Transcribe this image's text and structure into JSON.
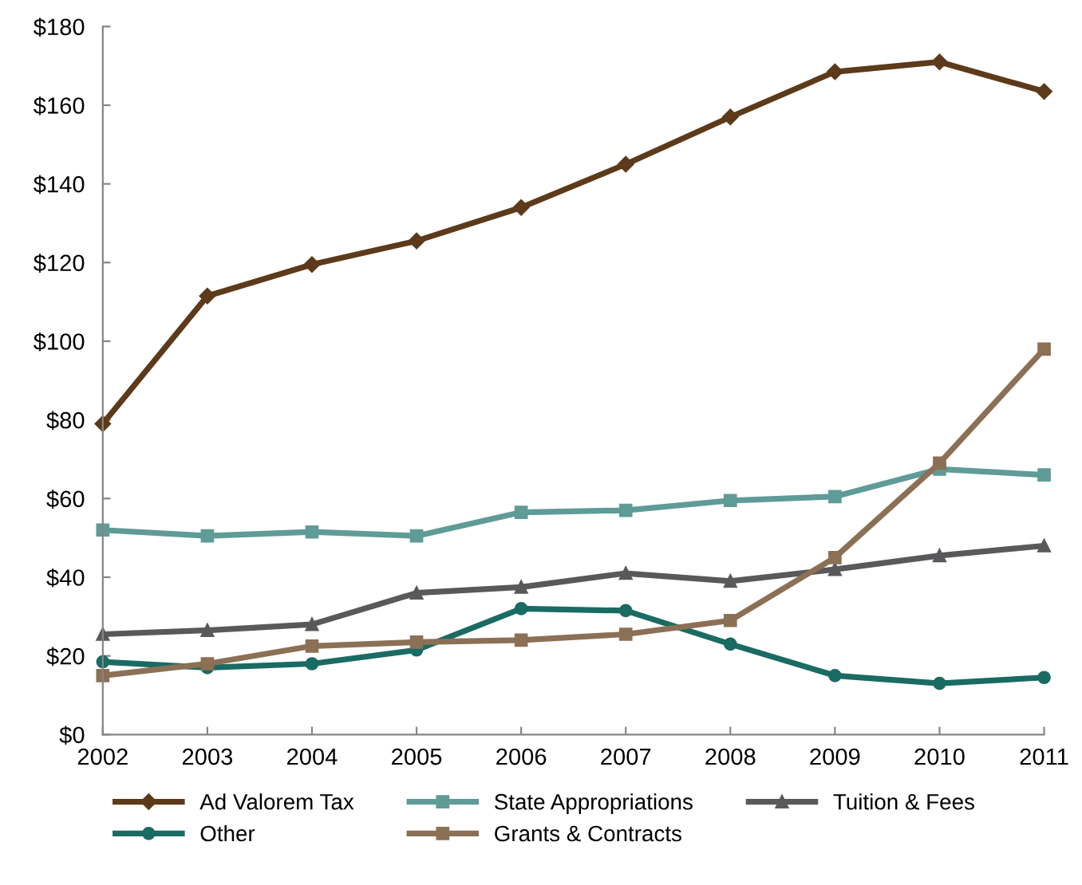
{
  "chart_data": {
    "type": "line",
    "categories": [
      "2002",
      "2003",
      "2004",
      "2005",
      "2006",
      "2007",
      "2008",
      "2009",
      "2010",
      "2011"
    ],
    "series": [
      {
        "name": "Ad Valorem Tax",
        "color": "#5c3a1a",
        "marker": "diamond",
        "values": [
          79,
          111.5,
          119.5,
          125.5,
          134,
          145,
          157,
          168.5,
          171,
          163.5
        ]
      },
      {
        "name": "State Appropriations",
        "color": "#5f9b97",
        "marker": "square",
        "values": [
          52,
          50.5,
          51.5,
          50.5,
          56.5,
          57,
          59.5,
          60.5,
          67.5,
          66
        ]
      },
      {
        "name": "Tuition & Fees",
        "color": "#59595b",
        "marker": "triangle",
        "values": [
          25.5,
          26.5,
          28,
          36,
          37.5,
          41,
          39,
          42,
          45.5,
          48
        ]
      },
      {
        "name": "Other",
        "color": "#1a6b63",
        "marker": "circle",
        "values": [
          18.5,
          17,
          18,
          21.5,
          32,
          31.5,
          23,
          15,
          13,
          14.5
        ]
      },
      {
        "name": "Grants & Contracts",
        "color": "#8c7055",
        "marker": "square",
        "values": [
          15,
          18,
          22.5,
          23.5,
          24,
          25.5,
          29,
          45,
          69,
          98
        ]
      }
    ],
    "ylim": [
      0,
      180
    ],
    "yticks": [
      {
        "value": 0,
        "label": "$0"
      },
      {
        "value": 20,
        "label": "$20"
      },
      {
        "value": 40,
        "label": "$40"
      },
      {
        "value": 60,
        "label": "$60"
      },
      {
        "value": 80,
        "label": "$80"
      },
      {
        "value": 100,
        "label": "$100"
      },
      {
        "value": 120,
        "label": "$120"
      },
      {
        "value": 140,
        "label": "$140"
      },
      {
        "value": 160,
        "label": "$160"
      },
      {
        "value": 180,
        "label": "$180"
      }
    ],
    "grid": false,
    "legend": "bottom",
    "line_style": "solid"
  }
}
